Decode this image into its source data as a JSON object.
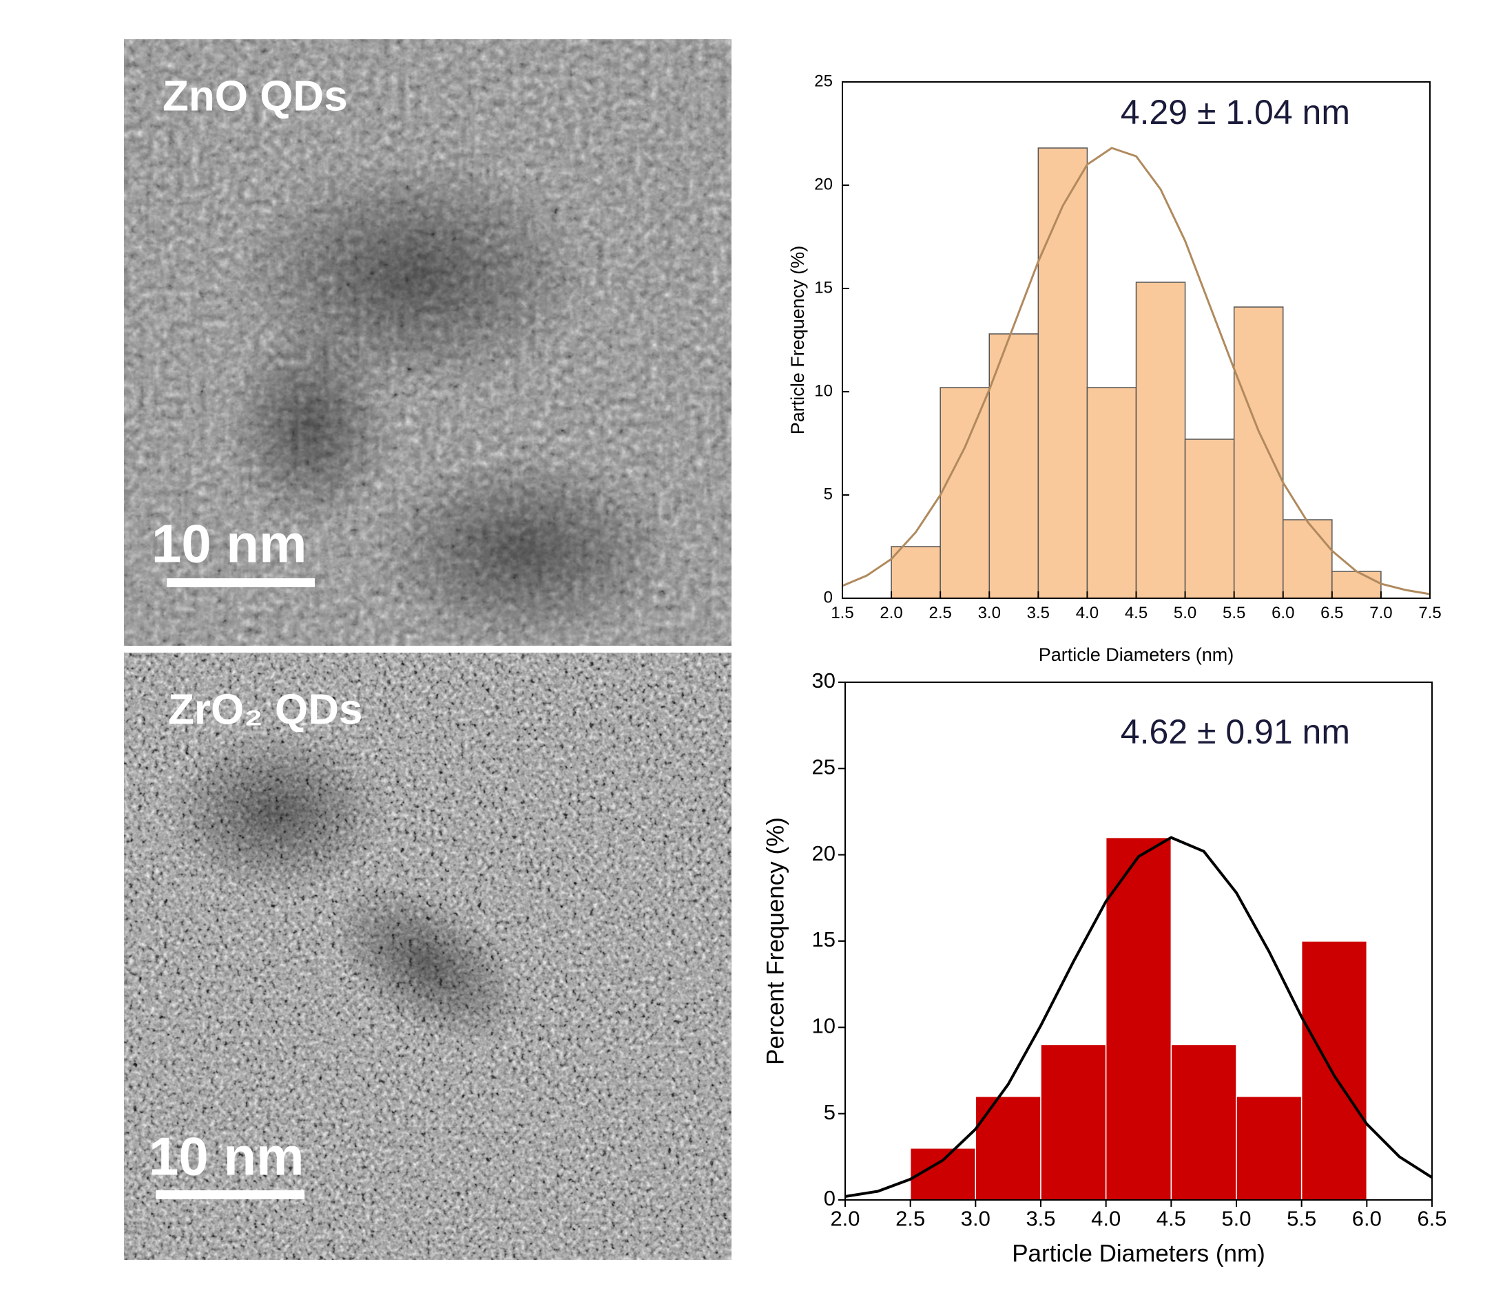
{
  "images": [
    {
      "label": "ZnO QDs",
      "scale_bar": "10 nm"
    },
    {
      "label": "ZrO₂ QDs",
      "scale_bar": "10 nm"
    }
  ],
  "chart_data": [
    {
      "type": "histogram",
      "annotation": "4.29 ± 1.04 nm",
      "x_label": "Particle Diameters (nm)",
      "y_label": "Particle Frequency (%)",
      "bins": [
        2.0,
        2.5,
        3.0,
        3.5,
        4.0,
        4.5,
        5.0,
        5.5,
        6.0,
        6.5,
        7.0
      ],
      "values": [
        2.5,
        10.2,
        12.8,
        21.8,
        10.2,
        15.3,
        7.7,
        14.1,
        3.8,
        1.3
      ],
      "color": "#f9c89b",
      "edge_color": "#555555",
      "fit": {
        "color": "#b08a5e",
        "x": [
          1.5,
          1.75,
          2.0,
          2.25,
          2.5,
          2.75,
          3.0,
          3.25,
          3.5,
          3.75,
          4.0,
          4.25,
          4.5,
          4.75,
          5.0,
          5.25,
          5.5,
          5.75,
          6.0,
          6.25,
          6.5,
          6.75,
          7.0,
          7.25,
          7.5
        ],
        "y": [
          0.6,
          1.1,
          1.9,
          3.2,
          5.0,
          7.3,
          10.1,
          13.2,
          16.3,
          19.0,
          21.0,
          21.8,
          21.4,
          19.8,
          17.3,
          14.2,
          11.1,
          8.1,
          5.6,
          3.7,
          2.3,
          1.3,
          0.7,
          0.4,
          0.2
        ]
      },
      "xlim": [
        1.5,
        7.5
      ],
      "ylim": [
        0,
        25
      ],
      "xticks": [
        1.5,
        {
          "value": 2,
          "label": "2.0"
        },
        2.5,
        {
          "value": 3,
          "label": "3.0"
        },
        3.5,
        {
          "value": 4,
          "label": "4.0"
        },
        4.5,
        {
          "value": 5,
          "label": "5.0"
        },
        5.5,
        {
          "value": 6,
          "label": "6.0"
        },
        6.5,
        {
          "value": 7,
          "label": "7.0"
        },
        7.5
      ],
      "yticks": [
        0,
        5,
        10,
        15,
        20,
        25
      ]
    },
    {
      "type": "histogram",
      "annotation": "4.62 ± 0.91 nm",
      "x_label": "Particle Diameters (nm)",
      "y_label": "Percent Frequency (%)",
      "bins": [
        2.5,
        3.0,
        3.5,
        4.0,
        4.5,
        5.0,
        5.5,
        6.0
      ],
      "values": [
        3,
        6,
        9,
        21,
        9,
        6,
        15
      ],
      "color": "#cc0000",
      "edge_color": "#ffffff",
      "fit": {
        "color": "#000000",
        "x": [
          2.0,
          2.25,
          2.5,
          2.75,
          3.0,
          3.25,
          3.5,
          3.75,
          4.0,
          4.25,
          4.5,
          4.75,
          5.0,
          5.25,
          5.5,
          5.75,
          6.0,
          6.25,
          6.5
        ],
        "y": [
          0.2,
          0.5,
          1.2,
          2.3,
          4.1,
          6.7,
          10.1,
          13.8,
          17.3,
          19.9,
          21.0,
          20.2,
          17.8,
          14.4,
          10.6,
          7.2,
          4.4,
          2.5,
          1.3
        ]
      },
      "xlim": [
        2.0,
        6.5
      ],
      "ylim": [
        0,
        30
      ],
      "xticks": [
        {
          "value": 2,
          "label": "2.0"
        },
        2.5,
        {
          "value": 3,
          "label": "3.0"
        },
        3.5,
        {
          "value": 4,
          "label": "4.0"
        },
        4.5,
        {
          "value": 5,
          "label": "5.0"
        },
        5.5,
        {
          "value": 6,
          "label": "6.0"
        },
        6.5
      ],
      "yticks": [
        0,
        5,
        10,
        15,
        20,
        25,
        30
      ]
    }
  ]
}
